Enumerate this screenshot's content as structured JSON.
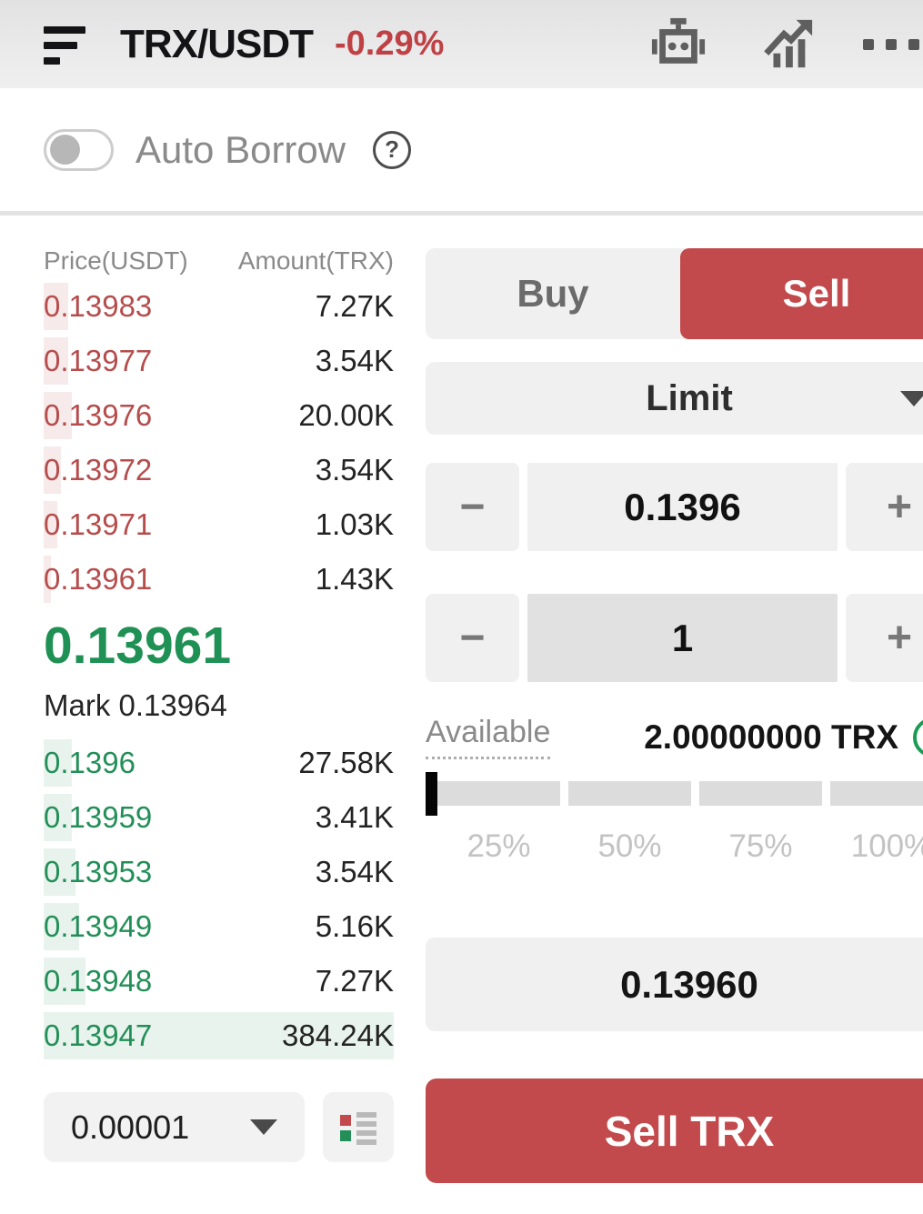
{
  "header": {
    "pair": "TRX/USDT",
    "change": "-0.29%"
  },
  "auto_borrow": {
    "label": "Auto Borrow",
    "enabled": false
  },
  "glyphs": {
    "minus": "−",
    "plus": "+",
    "help": "?"
  },
  "order_book": {
    "price_header": "Price(USDT)",
    "amount_header": "Amount(TRX)",
    "asks": [
      {
        "price": "0.13983",
        "amount": "7.27K",
        "depth": 7
      },
      {
        "price": "0.13977",
        "amount": "3.54K",
        "depth": 7
      },
      {
        "price": "0.13976",
        "amount": "20.00K",
        "depth": 8
      },
      {
        "price": "0.13972",
        "amount": "3.54K",
        "depth": 5
      },
      {
        "price": "0.13971",
        "amount": "1.03K",
        "depth": 4
      },
      {
        "price": "0.13961",
        "amount": "1.43K",
        "depth": 2
      }
    ],
    "last_price": "0.13961",
    "mark_label": "Mark",
    "mark_price": "0.13964",
    "bids": [
      {
        "price": "0.1396",
        "amount": "27.58K",
        "depth": 8
      },
      {
        "price": "0.13959",
        "amount": "3.41K",
        "depth": 8
      },
      {
        "price": "0.13953",
        "amount": "3.54K",
        "depth": 9
      },
      {
        "price": "0.13949",
        "amount": "5.16K",
        "depth": 10
      },
      {
        "price": "0.13948",
        "amount": "7.27K",
        "depth": 12
      },
      {
        "price": "0.13947",
        "amount": "384.24K",
        "depth": 100
      }
    ],
    "tick_size": "0.00001"
  },
  "trade_panel": {
    "tabs": {
      "buy": "Buy",
      "sell": "Sell",
      "active": "sell"
    },
    "order_type": "Limit",
    "price_value": "0.1396",
    "amount_value": "1",
    "available": {
      "label": "Available",
      "value": "2.00000000 TRX"
    },
    "slider": {
      "labels": [
        "25%",
        "50%",
        "75%",
        "100%"
      ],
      "value_percent": 0
    },
    "total_value": "0.13960",
    "submit_label": "Sell TRX"
  },
  "colors": {
    "sell_red": "#c2494c",
    "ask_text": "#b64c4c",
    "buy_green": "#1f9155",
    "bid_text": "#238f58",
    "ask_depth_bg": "#f7eaea",
    "bid_depth_bg": "#e9f3ed"
  }
}
